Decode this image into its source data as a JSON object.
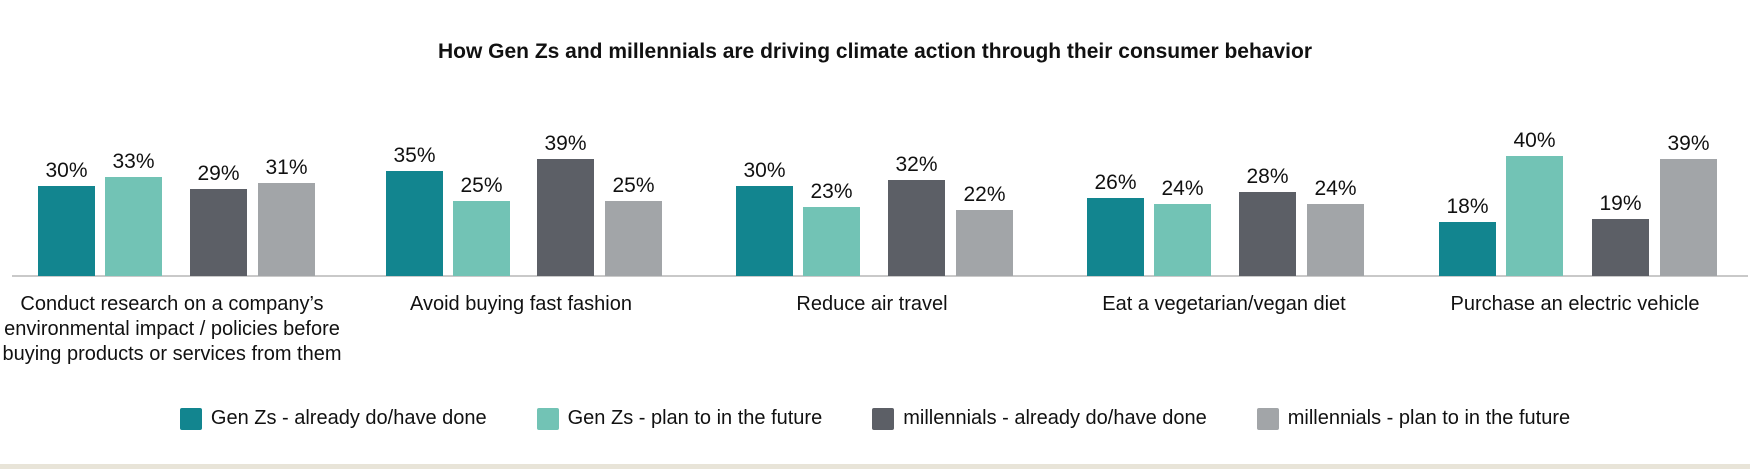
{
  "chart_data": {
    "type": "bar",
    "title": "How Gen Zs and millennials are driving climate action through their consumer behavior",
    "categories": [
      "Conduct research on a company’s environmental impact / policies before buying products or services from them",
      "Avoid buying fast fashion",
      "Reduce air travel",
      "Eat a vegetarian/vegan diet",
      "Purchase an electric vehicle"
    ],
    "series": [
      {
        "name": "Gen Zs - already do/have done",
        "color": "#12858f",
        "values": [
          30,
          35,
          30,
          26,
          18
        ]
      },
      {
        "name": "Gen Zs - plan to in the future",
        "color": "#72c3b5",
        "values": [
          33,
          25,
          23,
          24,
          40
        ]
      },
      {
        "name": "millennials - already do/have done",
        "color": "#5c5f66",
        "values": [
          29,
          39,
          32,
          28,
          19
        ]
      },
      {
        "name": "millennials - plan to in the future",
        "color": "#a2a5a8",
        "values": [
          31,
          25,
          22,
          24,
          39
        ]
      }
    ],
    "value_suffix": "%",
    "ylim": [
      0,
      40
    ],
    "xlabel": "",
    "ylabel": "",
    "grid": false,
    "legend_position": "bottom"
  }
}
